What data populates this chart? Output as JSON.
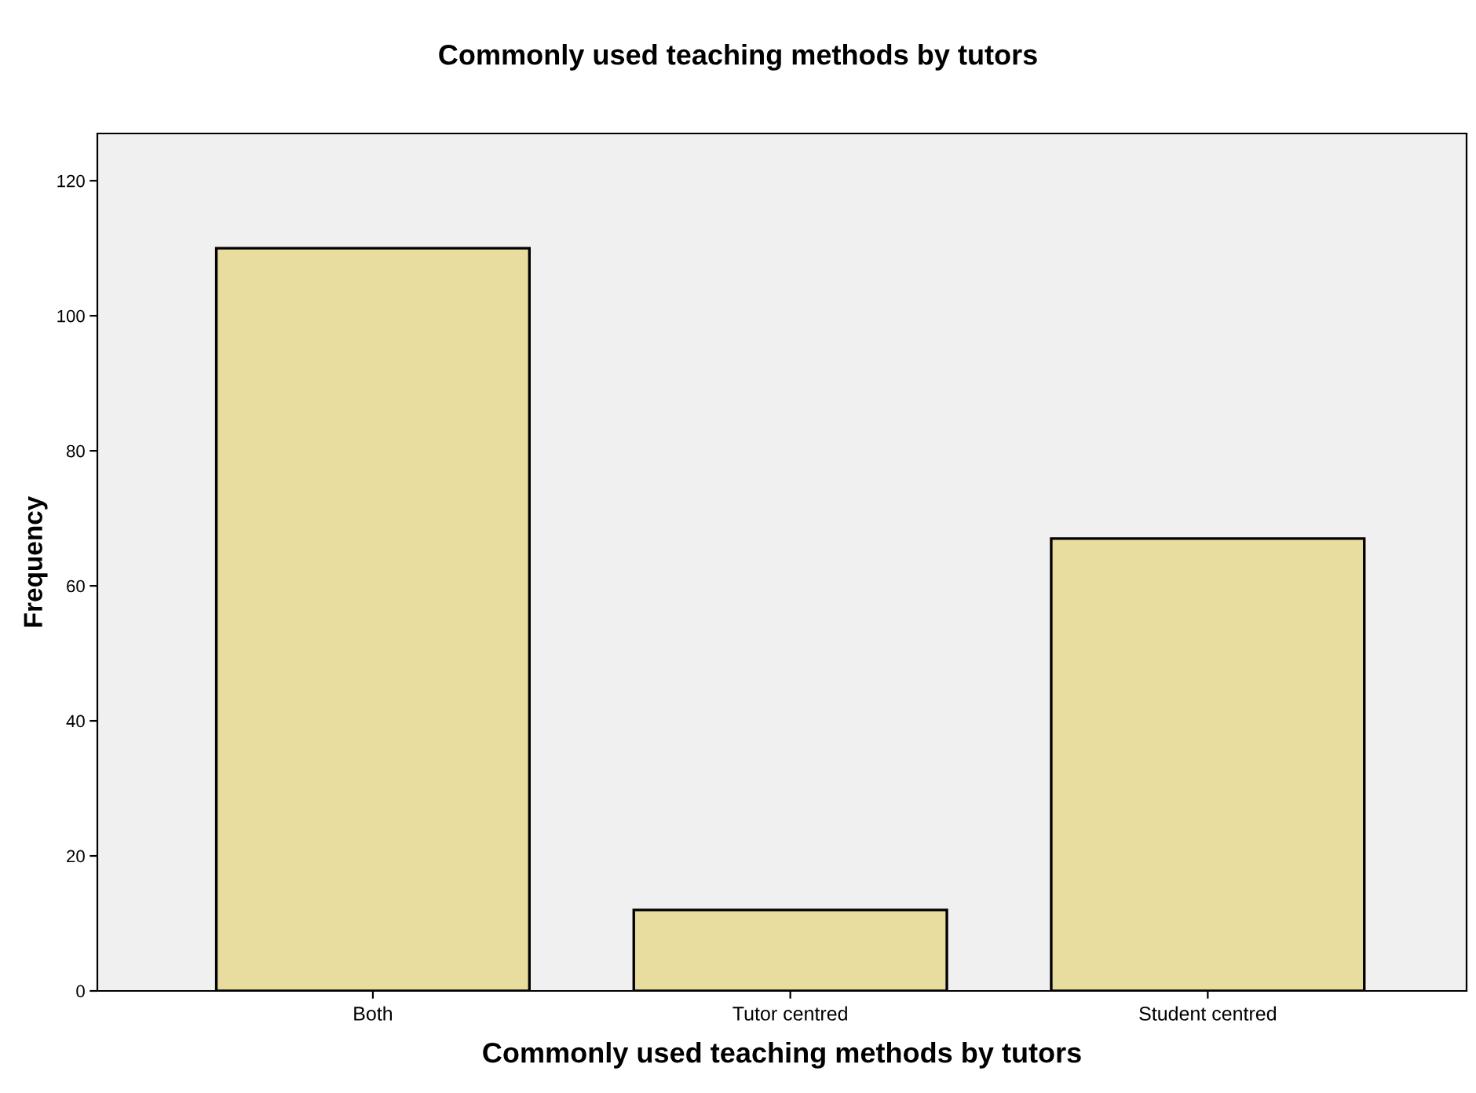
{
  "chart_data": {
    "type": "bar",
    "title": "Commonly used teaching methods by tutors",
    "xlabel": "Commonly used teaching methods by tutors",
    "ylabel": "Frequency",
    "categories": [
      "Both",
      "Tutor centred",
      "Student centred"
    ],
    "values": [
      110,
      12,
      67
    ],
    "color": "#e8dc9e",
    "ylim": [
      0,
      127
    ],
    "yticks": [
      0,
      20,
      40,
      60,
      80,
      100,
      120
    ],
    "grid": false,
    "legend": false
  }
}
